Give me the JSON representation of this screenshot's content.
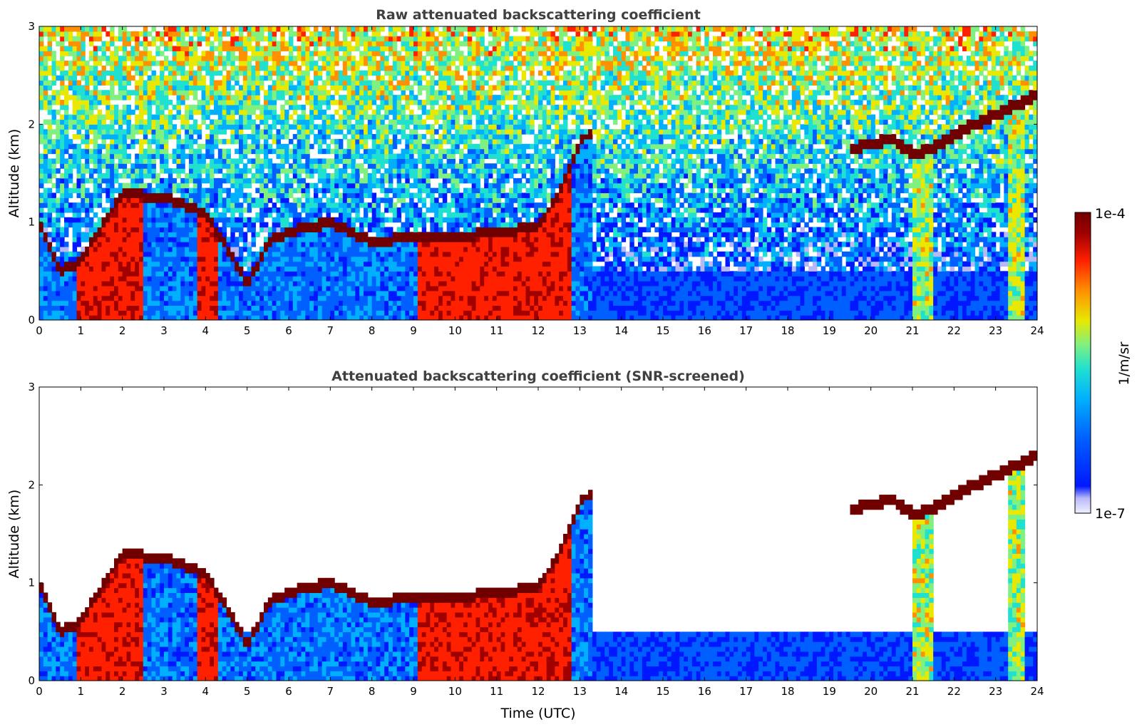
{
  "chart_data": [
    {
      "type": "heatmap",
      "title": "Raw attenuated backscattering coefficient",
      "xlabel": "",
      "ylabel": "Altitude (km)",
      "xlim": [
        0,
        24
      ],
      "ylim": [
        0,
        3
      ],
      "xticks": [
        "0",
        "1",
        "2",
        "3",
        "4",
        "5",
        "6",
        "7",
        "8",
        "9",
        "10",
        "11",
        "12",
        "13",
        "14",
        "15",
        "16",
        "17",
        "18",
        "19",
        "20",
        "21",
        "22",
        "23",
        "24"
      ],
      "yticks": [
        "0",
        "1",
        "2",
        "3"
      ],
      "x_ticks": [
        0,
        1,
        2,
        3,
        4,
        5,
        6,
        7,
        8,
        9,
        10,
        11,
        12,
        13,
        14,
        15,
        16,
        17,
        18,
        19,
        20,
        21,
        22,
        23,
        24
      ],
      "y_ticks": [
        0,
        1,
        2,
        3
      ],
      "screened": false,
      "features": {
        "boundary_layer_top_km": [
          [
            0,
            1.0
          ],
          [
            0.5,
            0.5
          ],
          [
            1,
            0.6
          ],
          [
            2,
            1.3
          ],
          [
            3,
            1.25
          ],
          [
            4,
            1.1
          ],
          [
            4.7,
            0.6
          ],
          [
            5,
            0.35
          ],
          [
            5.5,
            0.8
          ],
          [
            6,
            0.9
          ],
          [
            7,
            1.0
          ],
          [
            8,
            0.8
          ],
          [
            9,
            0.85
          ],
          [
            10,
            0.85
          ],
          [
            11,
            0.9
          ],
          [
            12,
            0.95
          ],
          [
            12.5,
            1.3
          ],
          [
            13,
            1.8
          ],
          [
            13.3,
            1.95
          ]
        ],
        "upper_cloud_layer_km": [
          [
            19.5,
            1.75
          ],
          [
            20.5,
            1.85
          ],
          [
            21,
            1.7
          ],
          [
            21.5,
            1.75
          ],
          [
            22,
            1.9
          ],
          [
            23,
            2.1
          ],
          [
            24,
            2.3
          ]
        ],
        "dense_aerosol_periods_utc": [
          [
            0.9,
            2.5
          ],
          [
            3.8,
            4.3
          ],
          [
            9.1,
            12.8
          ]
        ],
        "vertical_plumes_utc": [
          21.1,
          21.4,
          23.5
        ]
      }
    },
    {
      "type": "heatmap",
      "title": "Attenuated backscattering coefficient (SNR-screened)",
      "xlabel": "Time (UTC)",
      "ylabel": "Altitude (km)",
      "xlim": [
        0,
        24
      ],
      "ylim": [
        0,
        3
      ],
      "xticks": [
        "0",
        "1",
        "2",
        "3",
        "4",
        "5",
        "6",
        "7",
        "8",
        "9",
        "10",
        "11",
        "12",
        "13",
        "14",
        "15",
        "16",
        "17",
        "18",
        "19",
        "20",
        "21",
        "22",
        "23",
        "24"
      ],
      "yticks": [
        "0",
        "1",
        "2",
        "3"
      ],
      "x_ticks": [
        0,
        1,
        2,
        3,
        4,
        5,
        6,
        7,
        8,
        9,
        10,
        11,
        12,
        13,
        14,
        15,
        16,
        17,
        18,
        19,
        20,
        21,
        22,
        23,
        24
      ],
      "y_ticks": [
        0,
        1,
        2,
        3
      ],
      "screened": true
    }
  ],
  "colorbar": {
    "label": "1/m/sr",
    "max_label": "1e-4",
    "min_label": "1e-7",
    "scale": "log",
    "range": [
      1e-07,
      0.0001
    ],
    "colormap": [
      "#f0f0ff",
      "#b8b8f8",
      "#0018ff",
      "#0060ff",
      "#00b0ff",
      "#20e0d0",
      "#80f080",
      "#e8e800",
      "#ff9000",
      "#ff2000",
      "#a00000",
      "#700000"
    ]
  }
}
